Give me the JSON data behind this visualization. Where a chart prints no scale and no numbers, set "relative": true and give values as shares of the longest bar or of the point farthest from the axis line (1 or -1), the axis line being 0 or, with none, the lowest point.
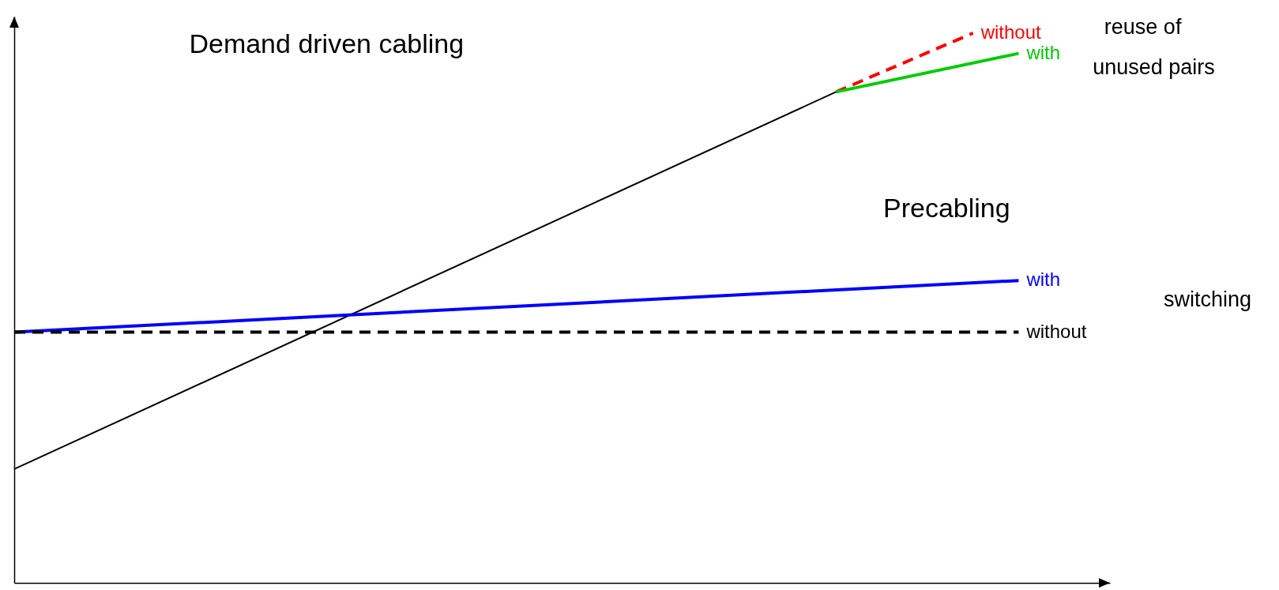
{
  "chart_data": {
    "type": "line",
    "relative": true,
    "marker": "none",
    "categories": [
      null,
      null,
      null,
      null,
      null,
      null,
      null,
      null,
      null,
      null,
      null,
      null,
      null,
      null,
      null,
      null,
      null,
      null,
      null,
      null,
      null,
      null,
      null
    ],
    "annotations": [
      "Demand driven cabling",
      "Precabling",
      "reuse of",
      "unused pairs",
      "switching"
    ],
    "series": [
      {
        "color": "#000000",
        "line_style": "solid",
        "values": [
          0.207,
          null,
          null,
          null,
          null,
          null,
          null,
          null,
          null,
          null,
          null,
          null,
          null,
          null,
          null,
          null,
          null,
          null,
          0.893,
          null,
          null,
          null,
          null
        ]
      },
      {
        "name": "without",
        "color": "#ff0000",
        "line_style": "dashed",
        "values": [
          null,
          null,
          null,
          null,
          null,
          null,
          null,
          null,
          null,
          null,
          null,
          null,
          null,
          null,
          null,
          null,
          null,
          null,
          0.893,
          null,
          null,
          1,
          null
        ]
      },
      {
        "name": "with",
        "color": "#00cc00",
        "line_style": "solid",
        "values": [
          null,
          null,
          null,
          null,
          null,
          null,
          null,
          null,
          null,
          null,
          null,
          null,
          null,
          null,
          null,
          null,
          null,
          null,
          0.893,
          null,
          null,
          null,
          0.963
        ]
      },
      {
        "name": "with",
        "color": "#0000ff",
        "line_style": "solid",
        "values": [
          0.456,
          null,
          null,
          null,
          null,
          null,
          null,
          null,
          null,
          null,
          null,
          null,
          null,
          null,
          null,
          null,
          null,
          null,
          null,
          null,
          null,
          null,
          0.55
        ]
      },
      {
        "name": "without",
        "color": "#000000",
        "line_style": "dashed",
        "values": [
          0.456,
          null,
          null,
          null,
          null,
          null,
          null,
          null,
          null,
          null,
          null,
          null,
          null,
          null,
          null,
          null,
          null,
          null,
          null,
          null,
          null,
          null,
          0.456
        ]
      }
    ]
  }
}
